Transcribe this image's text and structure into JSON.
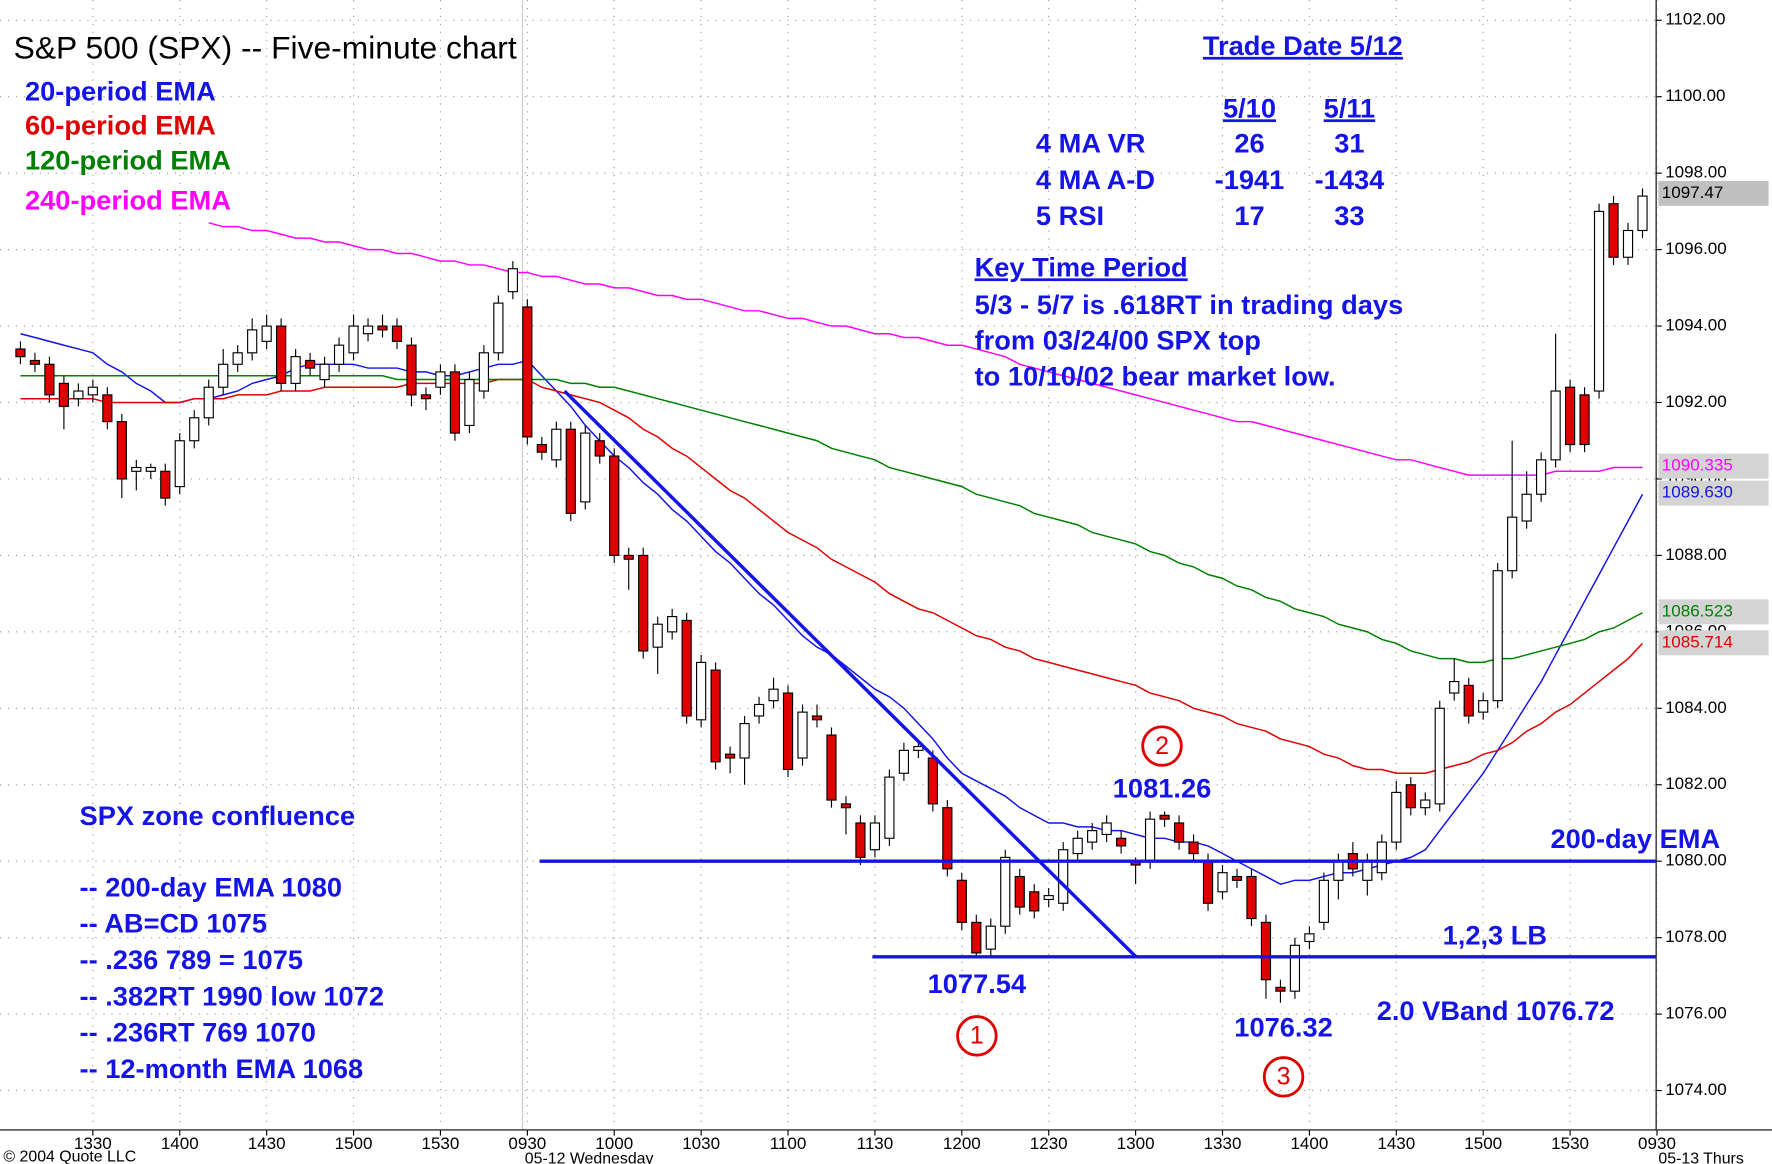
{
  "chart_data": {
    "type": "candlestick",
    "title": "S&P 500 (SPX) -- Five-minute chart",
    "categories": [
      null,
      null,
      null,
      null,
      null,
      "1330",
      null,
      null,
      null,
      null,
      null,
      "1400",
      null,
      null,
      null,
      null,
      null,
      "1430",
      null,
      null,
      null,
      null,
      null,
      "1500",
      null,
      null,
      null,
      null,
      null,
      "1530",
      null,
      null,
      null,
      null,
      null,
      "0930",
      null,
      null,
      null,
      null,
      null,
      "1000",
      null,
      null,
      null,
      null,
      null,
      "1030",
      null,
      null,
      null,
      null,
      null,
      "1100",
      null,
      null,
      null,
      null,
      null,
      "1130",
      null,
      null,
      null,
      null,
      null,
      "1200",
      null,
      null,
      null,
      null,
      null,
      "1230",
      null,
      null,
      null,
      null,
      null,
      "1300",
      null,
      null,
      null,
      null,
      null,
      "1330",
      null,
      null,
      null,
      null,
      null,
      "1400",
      null,
      null,
      null,
      null,
      null,
      "1430",
      null,
      null,
      null,
      null,
      null,
      "1500",
      null,
      null,
      null,
      null,
      null,
      "1530",
      null,
      null,
      null,
      null,
      null,
      "0930"
    ],
    "open": [
      1093.4,
      1093.1,
      1093.0,
      1092.5,
      1092.1,
      1092.2,
      1092.2,
      1091.5,
      1090.2,
      1090.2,
      1090.2,
      1089.8,
      1091.0,
      1091.6,
      1092.4,
      1093.0,
      1093.3,
      1093.6,
      1094.0,
      1092.5,
      1093.1,
      1092.6,
      1093.0,
      1093.3,
      1093.8,
      1094.0,
      1094.0,
      1093.5,
      1092.2,
      1092.4,
      1092.8,
      1091.4,
      1092.3,
      1093.3,
      1094.9,
      1094.5,
      1090.9,
      1090.5,
      1091.3,
      1089.4,
      1091.0,
      1090.6,
      1088.0,
      1088.0,
      1085.6,
      1086.0,
      1086.3,
      1083.7,
      1085.0,
      1082.8,
      1082.7,
      1083.8,
      1084.2,
      1084.4,
      1082.7,
      1083.8,
      1083.3,
      1081.5,
      1081.0,
      1080.3,
      1080.6,
      1082.3,
      1082.9,
      1082.7,
      1081.4,
      1079.5,
      1078.4,
      1077.7,
      1078.3,
      1079.6,
      1079.2,
      1079.0,
      1078.9,
      1080.2,
      1080.5,
      1080.7,
      1080.6,
      1080.0,
      1080.0,
      1081.2,
      1081.0,
      1080.5,
      1080.0,
      1079.2,
      1079.6,
      1079.6,
      1078.4,
      1076.7,
      1076.6,
      1077.9,
      1078.4,
      1079.5,
      1080.2,
      1079.5,
      1079.7,
      1080.5,
      1082.0,
      1081.4,
      1081.5,
      1084.4,
      1084.6,
      1083.9,
      1084.2,
      1087.6,
      1088.9,
      1089.6,
      1090.5,
      1092.4,
      1092.2,
      1092.3,
      1097.2,
      1095.8,
      1096.5,
      null
    ],
    "high": [
      1093.6,
      1093.3,
      1093.2,
      1092.7,
      1092.5,
      1092.6,
      1092.4,
      1091.7,
      1090.5,
      1090.4,
      1090.4,
      1091.2,
      1091.8,
      1092.6,
      1093.4,
      1093.5,
      1094.2,
      1094.3,
      1094.2,
      1093.4,
      1093.3,
      1093.2,
      1093.7,
      1094.3,
      1094.2,
      1094.3,
      1094.2,
      1093.7,
      1092.4,
      1093.0,
      1093.0,
      1092.8,
      1093.5,
      1094.8,
      1095.7,
      1094.7,
      1091.1,
      1091.5,
      1091.5,
      1091.4,
      1091.2,
      1090.8,
      1088.2,
      1088.2,
      1086.4,
      1086.6,
      1086.5,
      1085.4,
      1085.2,
      1083.0,
      1083.8,
      1084.3,
      1084.8,
      1084.6,
      1084.1,
      1084.1,
      1083.5,
      1081.7,
      1081.2,
      1081.2,
      1082.4,
      1083.1,
      1083.1,
      1082.9,
      1081.6,
      1079.7,
      1078.6,
      1078.5,
      1080.3,
      1079.8,
      1079.4,
      1079.3,
      1080.5,
      1080.8,
      1081.0,
      1081.2,
      1080.8,
      1080.1,
      1081.3,
      1081.3,
      1081.2,
      1080.7,
      1080.2,
      1079.9,
      1079.8,
      1079.8,
      1078.6,
      1076.9,
      1078.0,
      1078.3,
      1079.7,
      1080.2,
      1080.5,
      1080.2,
      1080.7,
      1082.1,
      1082.2,
      1081.8,
      1084.2,
      1085.3,
      1084.8,
      1084.4,
      1087.8,
      1091.0,
      1090.2,
      1090.7,
      1093.8,
      1092.6,
      1092.4,
      1097.2,
      1097.4,
      1096.7,
      1097.6,
      null
    ],
    "low": [
      1093.0,
      1092.8,
      1092.0,
      1091.3,
      1091.9,
      1092.0,
      1091.3,
      1089.5,
      1089.7,
      1090.0,
      1089.3,
      1089.6,
      1090.8,
      1091.4,
      1092.2,
      1092.8,
      1093.1,
      1093.4,
      1092.3,
      1092.3,
      1092.7,
      1092.4,
      1092.8,
      1093.1,
      1093.6,
      1093.7,
      1093.4,
      1091.9,
      1091.8,
      1092.2,
      1091.0,
      1091.2,
      1092.1,
      1093.1,
      1094.7,
      1090.9,
      1090.5,
      1090.3,
      1088.9,
      1089.2,
      1090.4,
      1087.8,
      1087.1,
      1085.3,
      1084.9,
      1085.8,
      1083.6,
      1083.5,
      1082.4,
      1082.3,
      1082.0,
      1083.6,
      1084.0,
      1082.2,
      1082.5,
      1083.5,
      1081.4,
      1080.7,
      1079.9,
      1080.1,
      1080.4,
      1082.1,
      1082.7,
      1081.3,
      1079.6,
      1078.2,
      1077.5,
      1077.5,
      1078.1,
      1078.6,
      1078.5,
      1078.8,
      1078.7,
      1080.0,
      1080.3,
      1080.5,
      1080.2,
      1079.4,
      1079.8,
      1080.9,
      1080.3,
      1080.0,
      1078.7,
      1079.0,
      1079.3,
      1078.3,
      1076.4,
      1076.3,
      1076.4,
      1077.7,
      1078.2,
      1079.0,
      1079.6,
      1079.1,
      1079.5,
      1080.3,
      1081.2,
      1081.2,
      1081.3,
      1084.2,
      1083.6,
      1083.7,
      1084.0,
      1087.4,
      1088.7,
      1089.4,
      1090.3,
      1090.7,
      1090.7,
      1092.1,
      1095.6,
      1095.6,
      1096.3,
      null
    ],
    "close": [
      1093.2,
      1093.0,
      1092.2,
      1091.9,
      1092.3,
      1092.4,
      1091.5,
      1090.0,
      1090.3,
      1090.3,
      1089.5,
      1091.0,
      1091.6,
      1092.4,
      1093.0,
      1093.3,
      1093.9,
      1094.0,
      1092.5,
      1093.2,
      1092.9,
      1093.0,
      1093.5,
      1094.0,
      1094.0,
      1093.9,
      1093.6,
      1092.2,
      1092.1,
      1092.8,
      1091.2,
      1092.6,
      1093.3,
      1094.6,
      1095.5,
      1091.1,
      1090.7,
      1091.3,
      1089.1,
      1091.2,
      1090.6,
      1088.0,
      1087.9,
      1085.5,
      1086.2,
      1086.4,
      1083.8,
      1085.2,
      1082.6,
      1082.7,
      1083.6,
      1084.1,
      1084.5,
      1082.4,
      1083.9,
      1083.7,
      1081.6,
      1081.4,
      1080.1,
      1081.0,
      1082.2,
      1082.9,
      1083.0,
      1081.5,
      1079.8,
      1078.4,
      1077.6,
      1078.3,
      1080.1,
      1078.8,
      1078.7,
      1079.1,
      1080.3,
      1080.6,
      1080.8,
      1081.0,
      1080.4,
      1079.9,
      1081.1,
      1081.1,
      1080.5,
      1080.2,
      1078.9,
      1079.7,
      1079.5,
      1078.5,
      1076.9,
      1076.6,
      1077.8,
      1078.1,
      1079.5,
      1080.0,
      1079.8,
      1080.0,
      1080.5,
      1081.8,
      1081.4,
      1081.6,
      1084.0,
      1084.7,
      1083.8,
      1084.2,
      1087.6,
      1089.0,
      1089.6,
      1090.5,
      1092.3,
      1090.9,
      1090.9,
      1097.0,
      1095.8,
      1096.5,
      1097.4,
      null
    ],
    "up_color": "#ffffff",
    "down_color": "#e00000",
    "series": [
      {
        "name": "20-period EMA",
        "color": "#1414e6",
        "marker": {
          "value": 1089.63,
          "label": "1089.630"
        },
        "values": [
          1093.8,
          1093.7,
          1093.6,
          1093.5,
          1093.4,
          1093.3,
          1093.0,
          1092.8,
          1092.5,
          1092.3,
          1092.0,
          1092.0,
          1092.1,
          1092.1,
          1092.2,
          1092.3,
          1092.5,
          1092.6,
          1092.7,
          1092.9,
          1093.0,
          1093.0,
          1093.0,
          1093.0,
          1092.9,
          1092.9,
          1092.9,
          1092.8,
          1092.8,
          1092.7,
          1092.7,
          1092.8,
          1092.9,
          1093.0,
          1093.0,
          1093.1,
          1092.7,
          1092.3,
          1091.9,
          1091.4,
          1091.0,
          1090.6,
          1090.3,
          1089.9,
          1089.6,
          1089.2,
          1088.9,
          1088.5,
          1088.1,
          1087.8,
          1087.4,
          1087.0,
          1086.7,
          1086.3,
          1085.9,
          1085.6,
          1085.4,
          1085.1,
          1084.8,
          1084.5,
          1084.3,
          1084.0,
          1083.6,
          1083.2,
          1082.7,
          1082.3,
          1082.1,
          1081.9,
          1081.7,
          1081.4,
          1081.2,
          1081.0,
          1081.0,
          1080.9,
          1080.9,
          1080.8,
          1080.8,
          1080.7,
          1080.6,
          1080.6,
          1080.5,
          1080.5,
          1080.4,
          1080.2,
          1080.0,
          1079.8,
          1079.6,
          1079.4,
          1079.5,
          1079.5,
          1079.6,
          1079.7,
          1079.7,
          1079.8,
          1079.9,
          1080.0,
          1080.1,
          1080.3,
          1080.8,
          1081.3,
          1081.8,
          1082.3,
          1082.9,
          1083.5,
          1084.1,
          1084.7,
          1085.4,
          1086.1,
          1086.8,
          1087.5,
          1088.2,
          1088.9,
          1089.6,
          null
        ]
      },
      {
        "name": "60-period EMA",
        "color": "#e00000",
        "marker": {
          "value": 1085.714,
          "label": "1085.714"
        },
        "values": [
          1092.1,
          1092.1,
          1092.1,
          1092.1,
          1092.1,
          1092.1,
          1092.0,
          1092.0,
          1092.0,
          1092.0,
          1092.0,
          1092.0,
          1092.1,
          1092.1,
          1092.1,
          1092.2,
          1092.2,
          1092.2,
          1092.3,
          1092.3,
          1092.3,
          1092.4,
          1092.4,
          1092.4,
          1092.4,
          1092.4,
          1092.4,
          1092.5,
          1092.5,
          1092.5,
          1092.5,
          1092.5,
          1092.5,
          1092.6,
          1092.6,
          1092.6,
          1092.4,
          1092.3,
          1092.2,
          1092.1,
          1092.0,
          1091.8,
          1091.6,
          1091.3,
          1091.1,
          1090.8,
          1090.6,
          1090.3,
          1090.0,
          1089.7,
          1089.5,
          1089.2,
          1088.9,
          1088.6,
          1088.4,
          1088.2,
          1087.9,
          1087.7,
          1087.5,
          1087.3,
          1087.0,
          1086.8,
          1086.6,
          1086.5,
          1086.3,
          1086.1,
          1085.9,
          1085.8,
          1085.6,
          1085.5,
          1085.3,
          1085.2,
          1085.1,
          1085.0,
          1084.9,
          1084.8,
          1084.7,
          1084.6,
          1084.4,
          1084.3,
          1084.2,
          1084.0,
          1083.9,
          1083.8,
          1083.6,
          1083.5,
          1083.4,
          1083.2,
          1083.1,
          1083.0,
          1082.8,
          1082.7,
          1082.5,
          1082.4,
          1082.4,
          1082.3,
          1082.3,
          1082.3,
          1082.4,
          1082.5,
          1082.6,
          1082.8,
          1082.9,
          1083.1,
          1083.4,
          1083.6,
          1083.9,
          1084.1,
          1084.4,
          1084.7,
          1085.0,
          1085.3,
          1085.7,
          null
        ]
      },
      {
        "name": "120-period EMA",
        "color": "#008000",
        "marker": {
          "value": 1086.523,
          "label": "1086.523"
        },
        "values": [
          1092.7,
          1092.7,
          1092.7,
          1092.7,
          1092.7,
          1092.7,
          1092.7,
          1092.7,
          1092.7,
          1092.7,
          1092.7,
          1092.7,
          1092.7,
          1092.7,
          1092.7,
          1092.7,
          1092.7,
          1092.7,
          1092.7,
          1092.7,
          1092.7,
          1092.7,
          1092.7,
          1092.7,
          1092.7,
          1092.7,
          1092.6,
          1092.6,
          1092.6,
          1092.6,
          1092.6,
          1092.6,
          1092.6,
          1092.6,
          1092.6,
          1092.6,
          1092.6,
          1092.6,
          1092.5,
          1092.5,
          1092.4,
          1092.4,
          1092.3,
          1092.2,
          1092.1,
          1092.0,
          1091.9,
          1091.8,
          1091.7,
          1091.6,
          1091.5,
          1091.4,
          1091.3,
          1091.2,
          1091.1,
          1091.0,
          1090.8,
          1090.7,
          1090.6,
          1090.5,
          1090.3,
          1090.2,
          1090.1,
          1090.0,
          1089.9,
          1089.8,
          1089.6,
          1089.5,
          1089.4,
          1089.3,
          1089.1,
          1089.0,
          1088.9,
          1088.8,
          1088.6,
          1088.5,
          1088.4,
          1088.3,
          1088.1,
          1088.0,
          1087.8,
          1087.7,
          1087.5,
          1087.4,
          1087.2,
          1087.1,
          1086.9,
          1086.8,
          1086.6,
          1086.5,
          1086.4,
          1086.2,
          1086.1,
          1086.0,
          1085.8,
          1085.7,
          1085.5,
          1085.4,
          1085.3,
          1085.3,
          1085.2,
          1085.2,
          1085.3,
          1085.3,
          1085.4,
          1085.5,
          1085.6,
          1085.7,
          1085.8,
          1086.0,
          1086.1,
          1086.3,
          1086.5,
          null
        ]
      },
      {
        "name": "240-period EMA",
        "color": "#ff00ff",
        "marker": {
          "value": 1090.335,
          "label": "1090.335"
        },
        "values": [
          null,
          null,
          null,
          null,
          null,
          null,
          null,
          null,
          null,
          null,
          null,
          null,
          null,
          1096.7,
          1096.6,
          1096.6,
          1096.5,
          1096.5,
          1096.4,
          1096.3,
          1096.3,
          1096.2,
          1096.2,
          1096.1,
          1096.0,
          1096.0,
          1095.9,
          1095.9,
          1095.8,
          1095.7,
          1095.7,
          1095.6,
          1095.6,
          1095.5,
          1095.4,
          1095.4,
          1095.3,
          1095.3,
          1095.2,
          1095.1,
          1095.1,
          1095.0,
          1095.0,
          1094.9,
          1094.8,
          1094.8,
          1094.7,
          1094.7,
          1094.6,
          1094.5,
          1094.4,
          1094.4,
          1094.3,
          1094.2,
          1094.2,
          1094.1,
          1094.0,
          1094.0,
          1093.9,
          1093.8,
          1093.8,
          1093.7,
          1093.7,
          1093.6,
          1093.5,
          1093.5,
          1093.4,
          1093.3,
          1093.2,
          1093.0,
          1092.9,
          1092.8,
          1092.7,
          1092.6,
          1092.5,
          1092.4,
          1092.3,
          1092.2,
          1092.1,
          1092.0,
          1091.9,
          1091.8,
          1091.7,
          1091.6,
          1091.5,
          1091.5,
          1091.4,
          1091.3,
          1091.2,
          1091.1,
          1091.0,
          1090.9,
          1090.8,
          1090.7,
          1090.6,
          1090.5,
          1090.5,
          1090.4,
          1090.3,
          1090.2,
          1090.1,
          1090.1,
          1090.1,
          1090.1,
          1090.1,
          1090.1,
          1090.2,
          1090.2,
          1090.2,
          1090.2,
          1090.3,
          1090.3,
          1090.3,
          null
        ]
      }
    ],
    "last_price": {
      "value": 1097.47,
      "label": "1097.47"
    },
    "ylim": [
      1072.97,
      1102.53
    ],
    "yticks": [
      {
        "value": 1074,
        "label": "1074.00"
      },
      {
        "value": 1076,
        "label": "1076.00"
      },
      {
        "value": 1078,
        "label": "1078.00"
      },
      {
        "value": 1080,
        "label": "1080.00"
      },
      {
        "value": 1082,
        "label": "1082.00"
      },
      {
        "value": 1084,
        "label": "1084.00"
      },
      {
        "value": 1086,
        "label": "1086.00"
      },
      {
        "value": 1088,
        "label": "1088.00"
      },
      {
        "value": 1090,
        "label": "1090.00"
      },
      {
        "value": 1092,
        "label": "1092.00"
      },
      {
        "value": 1094,
        "label": "1094.00"
      },
      {
        "value": 1096,
        "label": "1096.00"
      },
      {
        "value": 1098,
        "label": "1098.00"
      },
      {
        "value": 1100,
        "label": "1100.00"
      },
      {
        "value": 1102,
        "label": "1102.00"
      }
    ],
    "grid": true,
    "hlines": [
      {
        "value": 1080,
        "label": "200-day EMA"
      },
      {
        "value": 1077.5,
        "label": "1,2,3 LB"
      }
    ],
    "trendline": [
      1092.3,
      1077.5
    ],
    "callouts": [
      {
        "value": 1077.54,
        "label": "1077.54",
        "marker": "1"
      },
      {
        "value": 1081.26,
        "label": "1081.26",
        "marker": "2"
      },
      {
        "value": 1076.32,
        "label": "1076.32",
        "marker": "3"
      }
    ],
    "vband": "2.0 VBand 1076.72",
    "trade_table": {
      "title": "Trade Date 5/12",
      "columns": [
        "5/10",
        "5/11"
      ],
      "rows": [
        {
          "label": "4 MA VR",
          "values": [
            26,
            31
          ]
        },
        {
          "label": "4 MA A-D",
          "values": [
            -1941,
            -1434
          ]
        },
        {
          "label": "5 RSI",
          "values": [
            17,
            33
          ]
        }
      ]
    },
    "key_period": {
      "title": "Key Time Period",
      "lines": [
        "5/3 - 5/7 is .618RT in trading days",
        "from 03/24/00 SPX top",
        "to 10/10/02 bear market low."
      ]
    },
    "zone": {
      "title": "SPX zone confluence",
      "items": [
        "-- 200-day EMA 1080",
        "-- AB=CD 1075",
        "-- .236 789 = 1075",
        "-- .382RT 1990 low 1072",
        "-- .236RT 769 1070",
        "-- 12-month EMA 1068"
      ]
    },
    "footer": {
      "copyright": "© 2004 Quote LLC",
      "day1": "05-12 Wednesday",
      "day2": "05-13 Thurs"
    }
  }
}
